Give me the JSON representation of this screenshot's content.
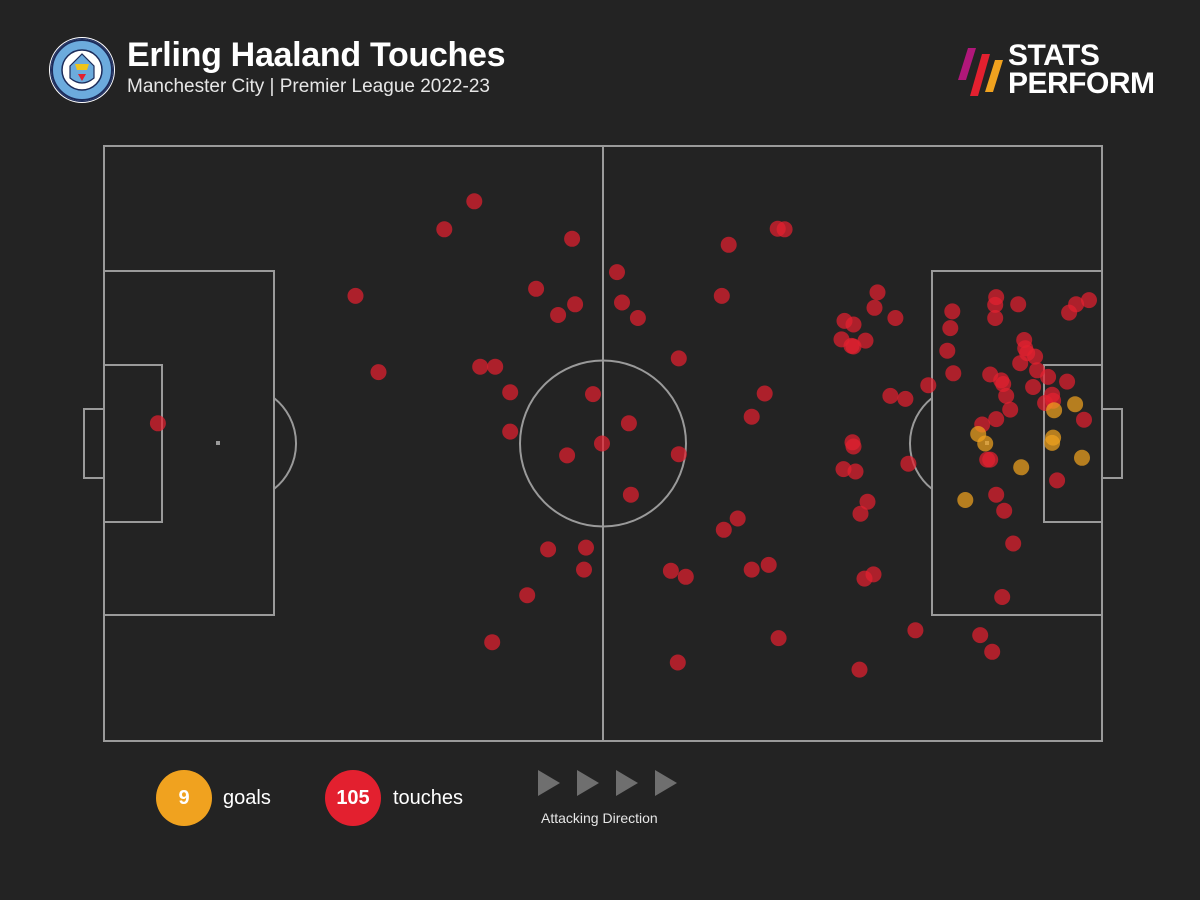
{
  "header": {
    "title": "Erling Haaland Touches",
    "subtitle": "Manchester City | Premier League 2022-23",
    "badge_text": "MANCHESTER CITY",
    "brand_line1": "STATS",
    "brand_line2": "PERFORM"
  },
  "legend": {
    "goals_value": "9",
    "goals_label": "goals",
    "touches_value": "105",
    "touches_label": "touches",
    "direction_label": "Attacking Direction"
  },
  "colors": {
    "background": "#232323",
    "pitch_lines": "#9a9a9a",
    "touch": "#e3202f",
    "goal": "#f0a21f",
    "brand_gradient": [
      "#f0a21f",
      "#e3202f",
      "#b0177a"
    ]
  },
  "chart_data": {
    "type": "scatter",
    "pitch": "full-pitch, attacking left to right",
    "xlim": [
      0,
      100
    ],
    "ylim": [
      0,
      100
    ],
    "series": [
      {
        "name": "touches",
        "color": "#e3202f",
        "points": [
          [
            5.4,
            46.6
          ],
          [
            25.2,
            25.2
          ],
          [
            27.5,
            38.0
          ],
          [
            34.1,
            14.0
          ],
          [
            37.1,
            9.3
          ],
          [
            37.7,
            37.1
          ],
          [
            39.2,
            37.1
          ],
          [
            38.9,
            83.4
          ],
          [
            40.7,
            41.4
          ],
          [
            40.7,
            48.0
          ],
          [
            42.4,
            75.5
          ],
          [
            43.3,
            24.0
          ],
          [
            44.5,
            67.8
          ],
          [
            45.5,
            28.4
          ],
          [
            46.4,
            52.0
          ],
          [
            46.9,
            15.6
          ],
          [
            47.2,
            26.6
          ],
          [
            48.1,
            71.2
          ],
          [
            48.3,
            67.5
          ],
          [
            49.0,
            41.7
          ],
          [
            51.4,
            21.2
          ],
          [
            51.9,
            26.3
          ],
          [
            52.6,
            46.6
          ],
          [
            53.5,
            28.9
          ],
          [
            52.8,
            58.6
          ],
          [
            56.8,
            71.4
          ],
          [
            57.5,
            86.8
          ],
          [
            58.3,
            72.4
          ],
          [
            57.6,
            35.7
          ],
          [
            57.6,
            51.8
          ],
          [
            61.9,
            25.2
          ],
          [
            62.6,
            16.6
          ],
          [
            63.5,
            62.6
          ],
          [
            62.1,
            64.5
          ],
          [
            64.9,
            71.2
          ],
          [
            66.6,
            70.4
          ],
          [
            67.5,
            13.9
          ],
          [
            68.2,
            14.0
          ],
          [
            67.6,
            82.7
          ],
          [
            66.2,
            41.6
          ],
          [
            64.9,
            45.5
          ],
          [
            73.9,
            32.5
          ],
          [
            74.2,
            29.4
          ],
          [
            74.9,
            33.6
          ],
          [
            75.1,
            30.0
          ],
          [
            75.1,
            33.7
          ],
          [
            76.3,
            32.7
          ],
          [
            77.2,
            27.2
          ],
          [
            77.5,
            24.6
          ],
          [
            79.3,
            28.9
          ],
          [
            76.5,
            59.8
          ],
          [
            75.8,
            61.8
          ],
          [
            75.3,
            54.7
          ],
          [
            75.0,
            49.8
          ],
          [
            75.1,
            50.5
          ],
          [
            74.1,
            54.3
          ],
          [
            76.2,
            72.7
          ],
          [
            77.1,
            72.0
          ],
          [
            75.7,
            88.0
          ],
          [
            78.8,
            42.0
          ],
          [
            80.3,
            42.5
          ],
          [
            80.6,
            53.4
          ],
          [
            81.3,
            81.4
          ],
          [
            82.6,
            40.2
          ],
          [
            84.8,
            30.6
          ],
          [
            84.5,
            34.4
          ],
          [
            85.1,
            38.2
          ],
          [
            85.0,
            27.8
          ],
          [
            89.4,
            25.4
          ],
          [
            89.3,
            26.7
          ],
          [
            89.3,
            28.9
          ],
          [
            88.8,
            38.4
          ],
          [
            89.9,
            39.4
          ],
          [
            90.1,
            40.0
          ],
          [
            90.4,
            42.0
          ],
          [
            88.5,
            52.7
          ],
          [
            88.8,
            52.7
          ],
          [
            89.4,
            58.6
          ],
          [
            91.6,
            26.6
          ],
          [
            92.2,
            32.6
          ],
          [
            92.3,
            34.0
          ],
          [
            93.3,
            35.4
          ],
          [
            93.5,
            37.7
          ],
          [
            94.3,
            43.2
          ],
          [
            95.1,
            42.8
          ],
          [
            96.7,
            28.0
          ],
          [
            97.4,
            26.6
          ],
          [
            98.7,
            25.9
          ],
          [
            98.2,
            46.0
          ],
          [
            95.5,
            56.2
          ],
          [
            93.1,
            40.5
          ],
          [
            90.8,
            44.3
          ],
          [
            89.4,
            45.9
          ],
          [
            88.0,
            46.8
          ],
          [
            90.2,
            61.3
          ],
          [
            91.1,
            66.8
          ],
          [
            90.0,
            75.8
          ],
          [
            89.0,
            85.0
          ],
          [
            87.8,
            82.2
          ],
          [
            94.6,
            38.8
          ],
          [
            96.5,
            39.6
          ],
          [
            95.0,
            41.8
          ],
          [
            91.8,
            36.5
          ],
          [
            92.5,
            34.8
          ],
          [
            49.9,
            50.0
          ]
        ]
      },
      {
        "name": "goals",
        "color": "#f0a21f",
        "points": [
          [
            87.6,
            48.4
          ],
          [
            88.3,
            50.0
          ],
          [
            86.3,
            59.5
          ],
          [
            91.9,
            54.0
          ],
          [
            95.0,
            49.9
          ],
          [
            95.1,
            49.0
          ],
          [
            95.2,
            44.4
          ],
          [
            97.3,
            43.4
          ],
          [
            98.0,
            52.4
          ]
        ]
      }
    ],
    "legend": "bottom-left",
    "grid": false
  }
}
